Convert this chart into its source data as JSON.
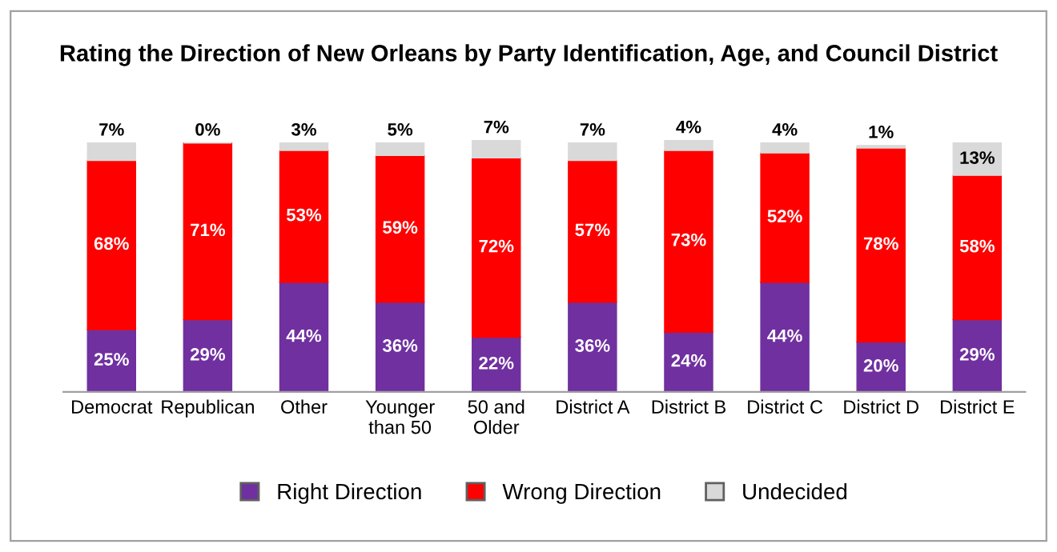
{
  "chart_data": {
    "type": "bar",
    "title": "Rating the Direction of New Orleans by Party Identification, Age, and Council District",
    "categories": [
      "Democrat",
      "Republican",
      "Other",
      "Younger than 50",
      "50 and Older",
      "District A",
      "District B",
      "District C",
      "District D",
      "District E"
    ],
    "series": [
      {
        "name": "Right Direction",
        "color": "#7030a0",
        "values": [
          25,
          29,
          44,
          36,
          22,
          36,
          24,
          44,
          20,
          29
        ],
        "value_labels": [
          "25%",
          "29%",
          "44%",
          "36%",
          "22%",
          "36%",
          "24%",
          "44%",
          "20%",
          "29%"
        ]
      },
      {
        "name": "Wrong Direction",
        "color": "#ff0000",
        "values": [
          68,
          71,
          53,
          59,
          72,
          57,
          73,
          52,
          78,
          58
        ],
        "value_labels": [
          "68%",
          "71%",
          "53%",
          "59%",
          "72%",
          "57%",
          "73%",
          "52%",
          "78%",
          "58%"
        ]
      },
      {
        "name": "Undecided",
        "color": "#d9d9d9",
        "values": [
          7,
          0,
          3,
          5,
          7,
          7,
          4,
          4,
          1,
          13
        ],
        "value_labels": [
          "7%",
          "0%",
          "3%",
          "5%",
          "7%",
          "7%",
          "4%",
          "4%",
          "1%",
          "13%"
        ]
      }
    ],
    "stacked": true,
    "legend": "bottom",
    "grid": false
  }
}
